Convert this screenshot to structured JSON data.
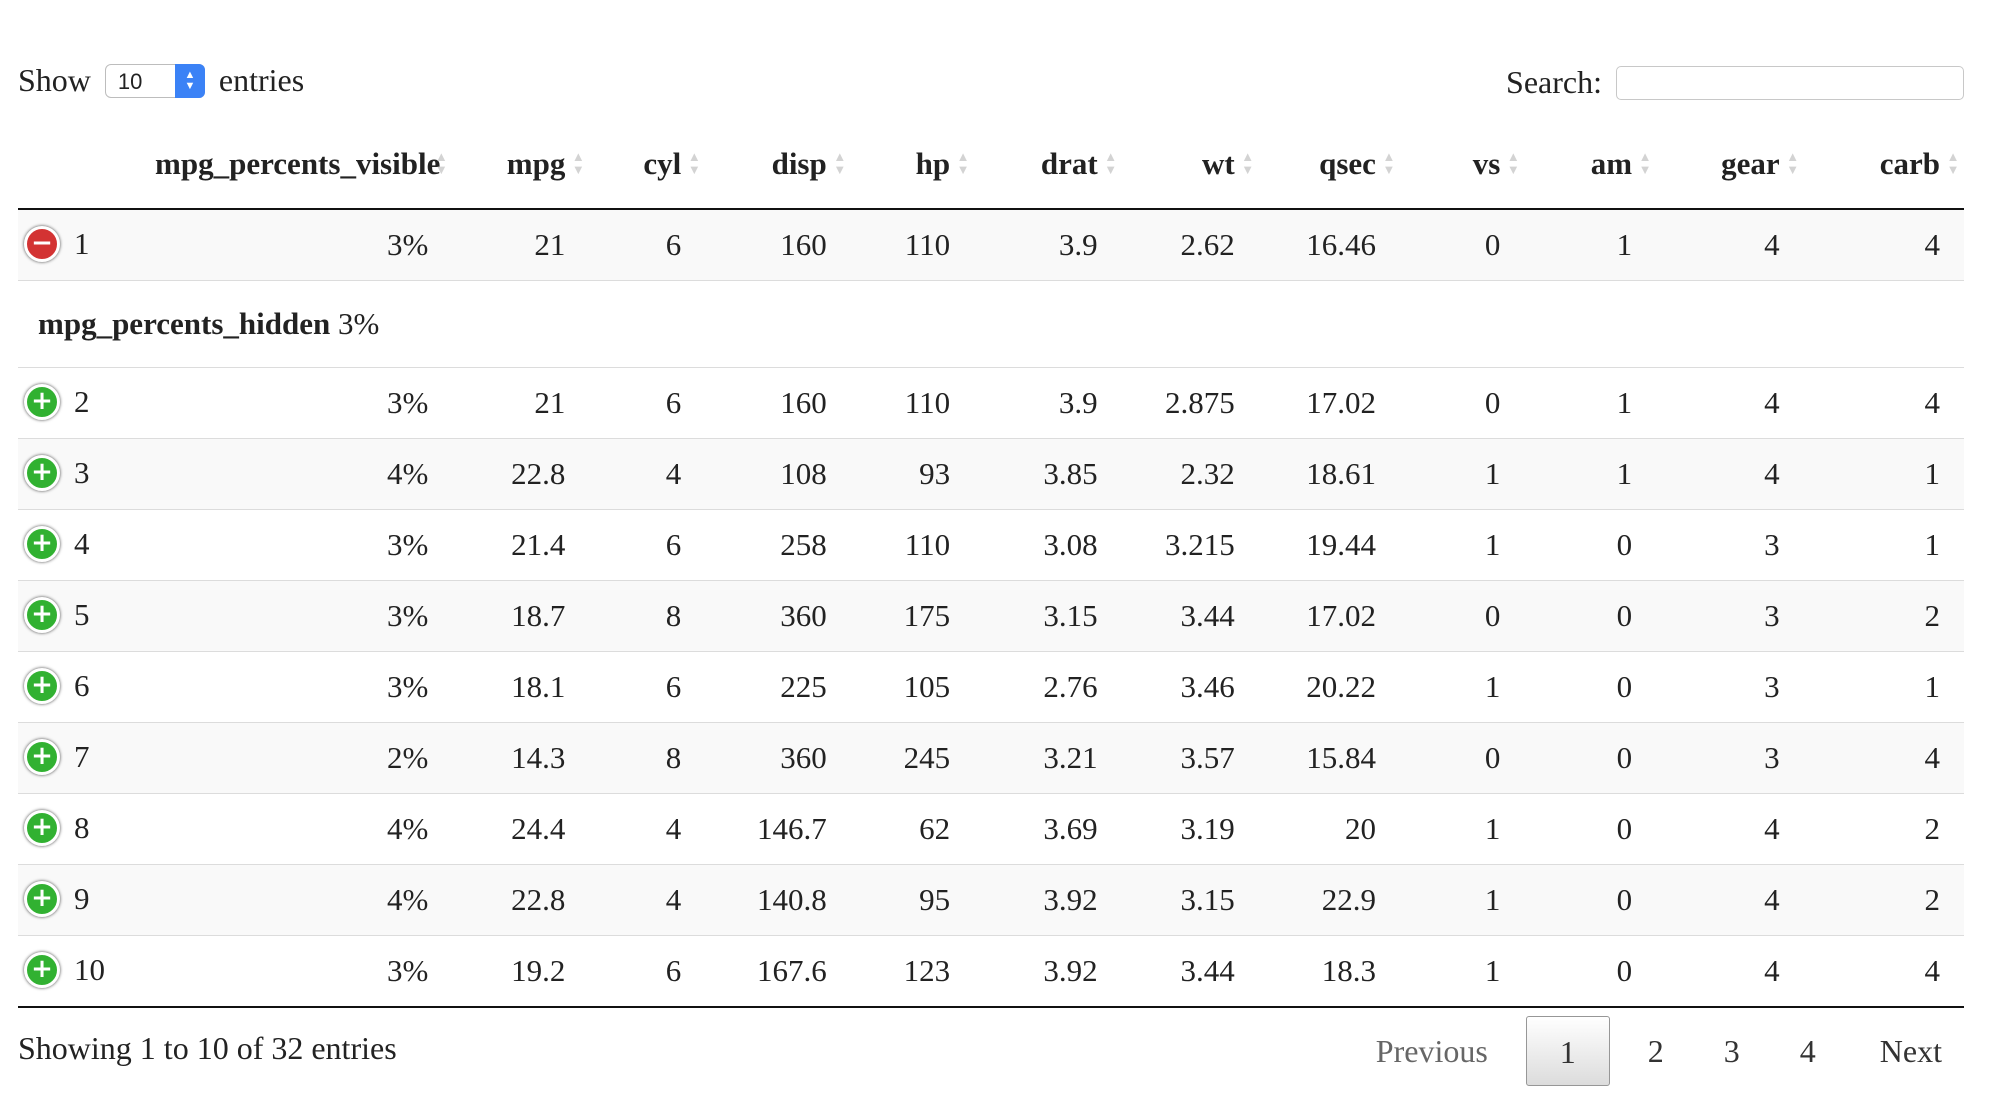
{
  "controls": {
    "show_label": "Show",
    "entries_label": "entries",
    "page_length": "10",
    "search_label": "Search:",
    "search_value": ""
  },
  "columns": [
    "",
    "mpg_percents_visible",
    "mpg",
    "cyl",
    "disp",
    "hp",
    "drat",
    "wt",
    "qsec",
    "vs",
    "am",
    "gear",
    "carb"
  ],
  "rows": [
    {
      "id": "1",
      "expanded": true,
      "cells": [
        "3%",
        "21",
        "6",
        "160",
        "110",
        "3.9",
        "2.62",
        "16.46",
        "0",
        "1",
        "4",
        "4"
      ]
    },
    {
      "id": "2",
      "expanded": false,
      "cells": [
        "3%",
        "21",
        "6",
        "160",
        "110",
        "3.9",
        "2.875",
        "17.02",
        "0",
        "1",
        "4",
        "4"
      ]
    },
    {
      "id": "3",
      "expanded": false,
      "cells": [
        "4%",
        "22.8",
        "4",
        "108",
        "93",
        "3.85",
        "2.32",
        "18.61",
        "1",
        "1",
        "4",
        "1"
      ]
    },
    {
      "id": "4",
      "expanded": false,
      "cells": [
        "3%",
        "21.4",
        "6",
        "258",
        "110",
        "3.08",
        "3.215",
        "19.44",
        "1",
        "0",
        "3",
        "1"
      ]
    },
    {
      "id": "5",
      "expanded": false,
      "cells": [
        "3%",
        "18.7",
        "8",
        "360",
        "175",
        "3.15",
        "3.44",
        "17.02",
        "0",
        "0",
        "3",
        "2"
      ]
    },
    {
      "id": "6",
      "expanded": false,
      "cells": [
        "3%",
        "18.1",
        "6",
        "225",
        "105",
        "2.76",
        "3.46",
        "20.22",
        "1",
        "0",
        "3",
        "1"
      ]
    },
    {
      "id": "7",
      "expanded": false,
      "cells": [
        "2%",
        "14.3",
        "8",
        "360",
        "245",
        "3.21",
        "3.57",
        "15.84",
        "0",
        "0",
        "3",
        "4"
      ]
    },
    {
      "id": "8",
      "expanded": false,
      "cells": [
        "4%",
        "24.4",
        "4",
        "146.7",
        "62",
        "3.69",
        "3.19",
        "20",
        "1",
        "0",
        "4",
        "2"
      ]
    },
    {
      "id": "9",
      "expanded": false,
      "cells": [
        "4%",
        "22.8",
        "4",
        "140.8",
        "95",
        "3.92",
        "3.15",
        "22.9",
        "1",
        "0",
        "4",
        "2"
      ]
    },
    {
      "id": "10",
      "expanded": false,
      "cells": [
        "3%",
        "19.2",
        "6",
        "167.6",
        "123",
        "3.92",
        "3.44",
        "18.3",
        "1",
        "0",
        "4",
        "4"
      ]
    }
  ],
  "child_row": {
    "name": "mpg_percents_hidden",
    "value": "3%"
  },
  "footer": {
    "info": "Showing 1 to 10 of 32 entries",
    "previous": "Previous",
    "next": "Next",
    "pages": [
      "1",
      "2",
      "3",
      "4"
    ],
    "current_page": "1"
  },
  "icons": {
    "expand": "plus-circle-icon",
    "collapse": "minus-circle-icon"
  },
  "colors": {
    "expand": "#31b131",
    "collapse": "#d33333",
    "select_arrow": "#3b82f6"
  }
}
